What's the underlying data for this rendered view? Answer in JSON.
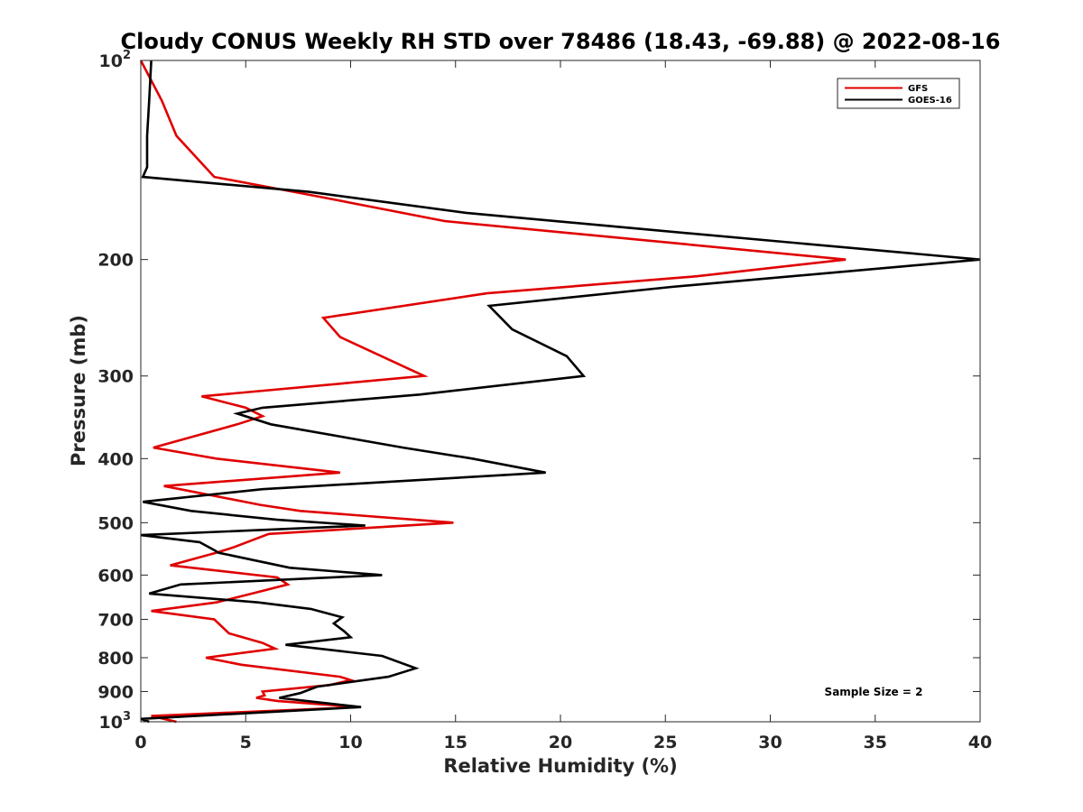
{
  "chart_data": {
    "type": "line",
    "title": "Cloudy CONUS Weekly RH STD over 78486 (18.43, -69.88) @ 2022-08-16",
    "xlabel": "Relative Humidity (%)",
    "ylabel": "Pressure (mb)",
    "xlim": [
      0,
      40
    ],
    "ylim": [
      100,
      1000
    ],
    "y_scale": "log",
    "y_reversed": true,
    "x_ticks": [
      0,
      5,
      10,
      15,
      20,
      25,
      30,
      35,
      40
    ],
    "y_ticks": [
      {
        "value": 100,
        "label": "10",
        "sup": "2"
      },
      {
        "value": 200,
        "label": "200",
        "sup": ""
      },
      {
        "value": 300,
        "label": "300",
        "sup": ""
      },
      {
        "value": 400,
        "label": "400",
        "sup": ""
      },
      {
        "value": 500,
        "label": "500",
        "sup": ""
      },
      {
        "value": 600,
        "label": "600",
        "sup": ""
      },
      {
        "value": 700,
        "label": "700",
        "sup": ""
      },
      {
        "value": 800,
        "label": "800",
        "sup": ""
      },
      {
        "value": 900,
        "label": "900",
        "sup": ""
      },
      {
        "value": 1000,
        "label": "10",
        "sup": "3"
      }
    ],
    "grid": false,
    "legend": {
      "placement": "top-right"
    },
    "annotation": "Sample Size = 2",
    "series": [
      {
        "name": "GFS",
        "color": "#e00000",
        "points": [
          [
            0,
            100
          ],
          [
            1.0,
            115
          ],
          [
            1.7,
            130
          ],
          [
            3.5,
            150
          ],
          [
            8.2,
            160
          ],
          [
            14.5,
            175
          ],
          [
            33.6,
            200
          ],
          [
            26.5,
            212
          ],
          [
            16.5,
            225
          ],
          [
            8.7,
            245
          ],
          [
            9.5,
            262
          ],
          [
            13.5,
            300
          ],
          [
            2.9,
            322
          ],
          [
            5.0,
            335
          ],
          [
            5.8,
            345
          ],
          [
            4.6,
            355
          ],
          [
            0.6,
            385
          ],
          [
            3.6,
            400
          ],
          [
            9.5,
            420
          ],
          [
            1.1,
            440
          ],
          [
            5.7,
            470
          ],
          [
            7.6,
            480
          ],
          [
            14.9,
            500
          ],
          [
            6.1,
            520
          ],
          [
            4.4,
            545
          ],
          [
            3.6,
            555
          ],
          [
            1.4,
            580
          ],
          [
            6.5,
            605
          ],
          [
            7.0,
            620
          ],
          [
            5.3,
            640
          ],
          [
            3.6,
            660
          ],
          [
            0.5,
            680
          ],
          [
            3.5,
            700
          ],
          [
            4.2,
            735
          ],
          [
            5.8,
            760
          ],
          [
            6.4,
            775
          ],
          [
            3.1,
            800
          ],
          [
            4.8,
            820
          ],
          [
            9.5,
            855
          ],
          [
            10.0,
            865
          ],
          [
            9.0,
            880
          ],
          [
            5.8,
            900
          ],
          [
            5.9,
            912
          ],
          [
            5.5,
            920
          ],
          [
            6.5,
            930
          ],
          [
            10.4,
            950
          ],
          [
            0.5,
            980
          ],
          [
            1.7,
            1000
          ]
        ]
      },
      {
        "name": "GOES-16",
        "color": "#000000",
        "points": [
          [
            0.5,
            100
          ],
          [
            0.4,
            115
          ],
          [
            0.3,
            130
          ],
          [
            0.3,
            145
          ],
          [
            0.1,
            150
          ],
          [
            8.0,
            158
          ],
          [
            15.5,
            170
          ],
          [
            24.0,
            180
          ],
          [
            40.0,
            200
          ],
          [
            25.3,
            220
          ],
          [
            16.6,
            235
          ],
          [
            17.7,
            255
          ],
          [
            20.3,
            280
          ],
          [
            21.1,
            300
          ],
          [
            13.3,
            320
          ],
          [
            5.8,
            335
          ],
          [
            4.6,
            342
          ],
          [
            6.2,
            355
          ],
          [
            12.5,
            385
          ],
          [
            15.8,
            400
          ],
          [
            19.3,
            420
          ],
          [
            5.8,
            445
          ],
          [
            0.1,
            465
          ],
          [
            2.4,
            480
          ],
          [
            6.5,
            495
          ],
          [
            10.7,
            505
          ],
          [
            0.0,
            522
          ],
          [
            2.8,
            535
          ],
          [
            3.5,
            550
          ],
          [
            3.7,
            555
          ],
          [
            7.1,
            585
          ],
          [
            11.5,
            600
          ],
          [
            1.9,
            620
          ],
          [
            0.4,
            640
          ],
          [
            5.6,
            660
          ],
          [
            8.1,
            675
          ],
          [
            9.6,
            695
          ],
          [
            9.2,
            710
          ],
          [
            9.7,
            730
          ],
          [
            10.0,
            745
          ],
          [
            6.9,
            765
          ],
          [
            11.5,
            795
          ],
          [
            13.1,
            830
          ],
          [
            11.8,
            855
          ],
          [
            8.4,
            885
          ],
          [
            7.6,
            905
          ],
          [
            6.6,
            920
          ],
          [
            10.5,
            950
          ],
          [
            0.0,
            990
          ],
          [
            0.4,
            1000
          ]
        ]
      }
    ]
  }
}
